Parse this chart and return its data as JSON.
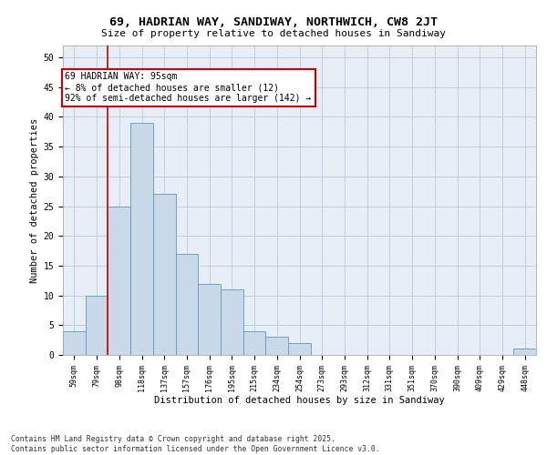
{
  "title_line1": "69, HADRIAN WAY, SANDIWAY, NORTHWICH, CW8 2JT",
  "title_line2": "Size of property relative to detached houses in Sandiway",
  "xlabel": "Distribution of detached houses by size in Sandiway",
  "ylabel": "Number of detached properties",
  "categories": [
    "59sqm",
    "79sqm",
    "98sqm",
    "118sqm",
    "137sqm",
    "157sqm",
    "176sqm",
    "195sqm",
    "215sqm",
    "234sqm",
    "254sqm",
    "273sqm",
    "293sqm",
    "312sqm",
    "331sqm",
    "351sqm",
    "370sqm",
    "390sqm",
    "409sqm",
    "429sqm",
    "448sqm"
  ],
  "values": [
    4,
    10,
    25,
    39,
    27,
    17,
    12,
    11,
    4,
    3,
    2,
    0,
    0,
    0,
    0,
    0,
    0,
    0,
    0,
    0,
    1
  ],
  "bar_color": "#c9d9ea",
  "bar_edge_color": "#5a9abf",
  "grid_color": "#c0cfe0",
  "bg_color": "#e8eef5",
  "vline_x": 1.5,
  "vline_color": "#cc0000",
  "annotation_text": "69 HADRIAN WAY: 95sqm\n← 8% of detached houses are smaller (12)\n92% of semi-detached houses are larger (142) →",
  "annotation_box_color": "#cc0000",
  "ylim": [
    0,
    52
  ],
  "yticks": [
    0,
    5,
    10,
    15,
    20,
    25,
    30,
    35,
    40,
    45,
    50
  ],
  "footer_line1": "Contains HM Land Registry data © Crown copyright and database right 2025.",
  "footer_line2": "Contains public sector information licensed under the Open Government Licence v3.0."
}
